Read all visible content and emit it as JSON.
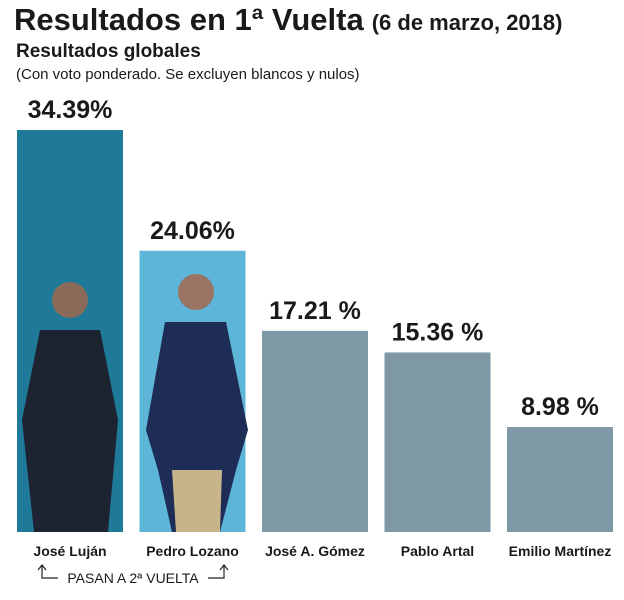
{
  "chart_data": {
    "type": "bar",
    "title": "Resultados en 1ª Vuelta",
    "title_date": "(6 de marzo, 2018)",
    "subtitle": "Resultados globales",
    "note": "(Con voto ponderado. Se excluyen blancos y nulos)",
    "annotation": "PASAN A 2ª VUELTA",
    "categories": [
      "José Luján",
      "Pedro Lozano",
      "José A. Gómez",
      "Pablo Artal",
      "Emilio Martínez"
    ],
    "values": [
      34.39,
      24.06,
      17.21,
      15.36,
      8.98
    ],
    "value_labels": [
      "34.39%",
      "24.06%",
      "17.21 %",
      "15.36 %",
      "8.98 %"
    ],
    "colors": [
      "#1f7a99",
      "#5db5d8",
      "#7f98a6",
      "#7f98a6",
      "#7f98a6"
    ]
  }
}
